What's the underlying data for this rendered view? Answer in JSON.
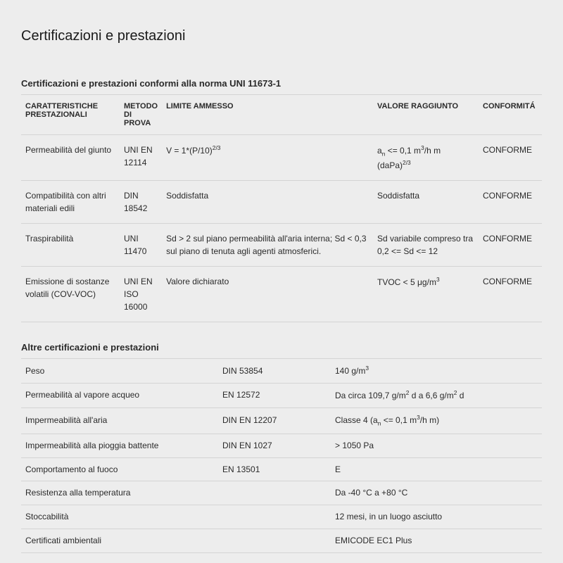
{
  "title": "Certificazioni e prestazioni",
  "section1": {
    "header": "Certificazioni e prestazioni conformi alla norma UNI 11673-1",
    "columns": {
      "c1": "CARATTERISTICHE PRESTAZIONALI",
      "c2": "METODO DI PROVA",
      "c3": "LIMITE AMMESSO",
      "c4": "VALORE RAGGIUNTO",
      "c5": "CONFORMITÁ"
    },
    "rows": [
      {
        "c1": "Permeabilità del giunto",
        "c2": "UNI EN 12114",
        "c3_html": "V = 1*(P/10)<sup>2/3</sup>",
        "c4_html": "a<sub>n</sub> <= 0,1 m<sup>3</sup>/h m (daPa)<sup>2/3</sup>",
        "c5": "CONFORME"
      },
      {
        "c1": "Compatibilità con altri materiali edili",
        "c2": "DIN 18542",
        "c3_html": "Soddisfatta",
        "c4_html": "Soddisfatta",
        "c5": "CONFORME"
      },
      {
        "c1": "Traspirabilità",
        "c2": "UNI 11470",
        "c3_html": "Sd > 2 sul piano permeabilità all'aria interna; Sd < 0,3 sul piano di tenuta agli agenti atmosferici.",
        "c4_html": "Sd variabile compreso tra 0,2 <= Sd <= 12",
        "c5": "CONFORME"
      },
      {
        "c1": "Emissione di sostanze volatili (COV-VOC)",
        "c2": "UNI EN ISO 16000",
        "c3_html": "Valore dichiarato",
        "c4_html": "TVOC < 5 μg/m<sup>3</sup>",
        "c5": "CONFORME"
      }
    ]
  },
  "section2": {
    "header": "Altre certificazioni e prestazioni",
    "rows": [
      {
        "c1": "Peso",
        "c2": "DIN 53854",
        "c3_html": "140 g/m<sup>3</sup>"
      },
      {
        "c1": "Permeabilità al vapore acqueo",
        "c2": "EN 12572",
        "c3_html": "Da circa 109,7 g/m<sup>2</sup> d a 6,6 g/m<sup>2</sup> d"
      },
      {
        "c1": "Impermeabilità all'aria",
        "c2": "DIN EN 12207",
        "c3_html": "Classe 4 (a<sub>n</sub> <= 0,1 m<sup>3</sup>/h m)"
      },
      {
        "c1": "Impermeabilità alla pioggia battente",
        "c2": "DIN EN 1027",
        "c3_html": "> 1050 Pa"
      },
      {
        "c1": "Comportamento al fuoco",
        "c2": "EN 13501",
        "c3_html": "E"
      },
      {
        "c1": "Resistenza alla temperatura",
        "c2": "",
        "c3_html": "Da -40 °C a +80 °C"
      },
      {
        "c1": "Stoccabilità",
        "c2": "",
        "c3_html": "12 mesi, in un luogo asciutto"
      },
      {
        "c1": "Certificati ambientali",
        "c2": "",
        "c3_html": "EMICODE EC1 Plus"
      }
    ]
  }
}
